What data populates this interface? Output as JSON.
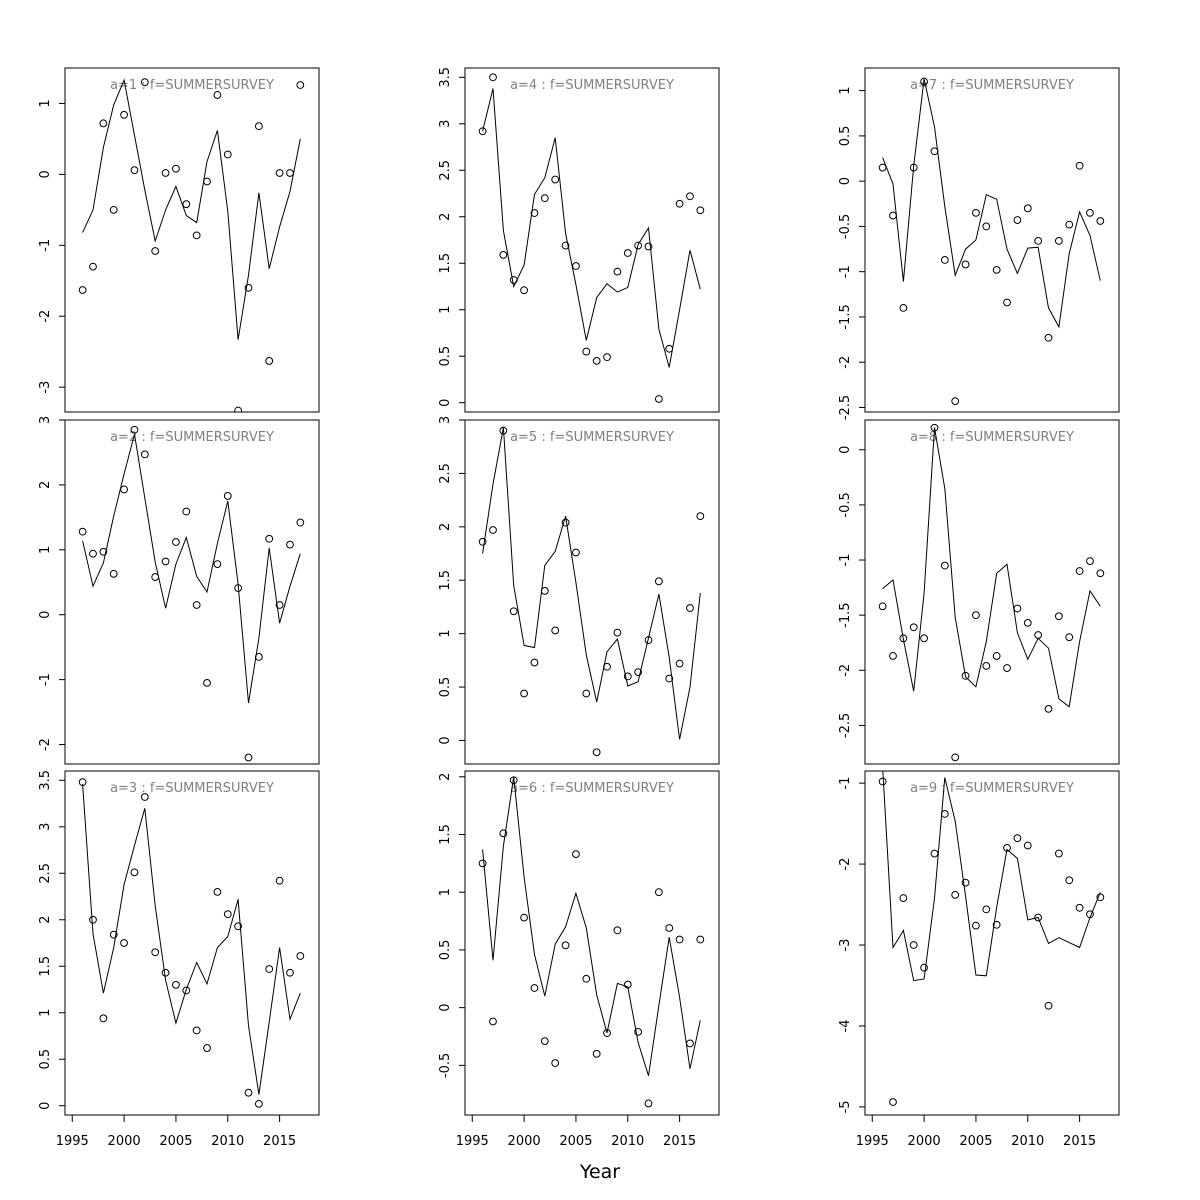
{
  "chart_data": {
    "type": "line",
    "xlabel": "Year",
    "x_ticks": [
      1995,
      2000,
      2005,
      2010,
      2015
    ],
    "years": [
      1996,
      1997,
      1998,
      1999,
      2000,
      2001,
      2002,
      2003,
      2004,
      2005,
      2006,
      2007,
      2008,
      2009,
      2010,
      2011,
      2012,
      2013,
      2014,
      2015,
      2016,
      2017
    ],
    "panels": [
      {
        "title": "a=1  :  f=SUMMERSURVEY",
        "ylim": [
          -3.35,
          1.5
        ],
        "y_ticks": [
          1,
          0,
          -1,
          -2,
          -3
        ],
        "observed": [
          -1.63,
          -1.3,
          0.72,
          -0.5,
          0.84,
          0.06,
          1.3,
          -1.08,
          0.02,
          0.08,
          -0.42,
          -0.86,
          -0.1,
          1.12,
          0.28,
          -3.33,
          -1.6,
          0.68,
          -2.63,
          0.02,
          0.02,
          1.26
        ],
        "fitted": [
          -0.82,
          -0.5,
          0.38,
          0.98,
          1.33,
          0.55,
          -0.22,
          -0.94,
          -0.5,
          -0.17,
          -0.58,
          -0.68,
          0.18,
          0.62,
          -0.52,
          -2.33,
          -1.42,
          -0.26,
          -1.33,
          -0.74,
          -0.24,
          0.5
        ]
      },
      {
        "title": "a=2  :  f=SUMMERSURVEY",
        "ylim": [
          -2.3,
          3.0
        ],
        "y_ticks": [
          3,
          2,
          1,
          0,
          -1,
          -2
        ],
        "observed": [
          1.28,
          0.94,
          0.97,
          0.63,
          1.93,
          2.85,
          2.47,
          0.58,
          0.82,
          1.12,
          1.59,
          0.15,
          -1.05,
          0.78,
          1.83,
          0.41,
          -2.2,
          -0.65,
          1.17,
          0.15,
          1.08,
          1.42
        ],
        "fitted": [
          1.14,
          0.44,
          0.8,
          1.52,
          2.17,
          2.78,
          1.8,
          0.81,
          0.1,
          0.78,
          1.19,
          0.59,
          0.35,
          1.1,
          1.75,
          0.47,
          -1.36,
          -0.36,
          1.03,
          -0.13,
          0.44,
          0.94
        ]
      },
      {
        "title": "a=3  :  f=SUMMERSURVEY",
        "ylim": [
          -0.1,
          3.6
        ],
        "y_ticks": [
          0.0,
          0.5,
          1.0,
          1.5,
          2.0,
          2.5,
          3.0,
          3.5
        ],
        "observed": [
          3.48,
          2.0,
          0.94,
          1.84,
          1.75,
          2.51,
          3.32,
          1.65,
          1.43,
          1.3,
          1.24,
          0.81,
          0.62,
          2.3,
          2.06,
          1.93,
          0.14,
          0.02,
          1.47,
          2.42,
          1.43,
          1.61
        ],
        "fitted": [
          3.46,
          1.85,
          1.21,
          1.7,
          2.38,
          2.8,
          3.2,
          2.15,
          1.35,
          0.89,
          1.25,
          1.54,
          1.31,
          1.7,
          1.82,
          2.22,
          0.86,
          0.12,
          0.9,
          1.7,
          0.93,
          1.21
        ]
      },
      {
        "title": "a=4  :  f=SUMMERSURVEY",
        "ylim": [
          -0.1,
          3.6
        ],
        "y_ticks": [
          0.0,
          0.5,
          1.0,
          1.5,
          2.0,
          2.5,
          3.0,
          3.5
        ],
        "observed": [
          2.92,
          3.5,
          1.59,
          1.32,
          1.21,
          2.04,
          2.2,
          2.4,
          1.69,
          1.47,
          0.55,
          0.45,
          0.49,
          1.41,
          1.61,
          1.69,
          1.68,
          0.04,
          0.58,
          2.14,
          2.22,
          2.07
        ],
        "fitted": [
          2.92,
          3.38,
          1.85,
          1.25,
          1.48,
          2.24,
          2.42,
          2.85,
          1.82,
          1.27,
          0.67,
          1.13,
          1.28,
          1.19,
          1.24,
          1.7,
          1.88,
          0.79,
          0.38,
          1.0,
          1.64,
          1.22
        ]
      },
      {
        "title": "a=5  :  f=SUMMERSURVEY",
        "ylim": [
          -0.22,
          3.0
        ],
        "y_ticks": [
          0.0,
          0.5,
          1.0,
          1.5,
          2.0,
          2.5,
          3.0
        ],
        "observed": [
          1.86,
          1.97,
          2.9,
          1.21,
          0.44,
          0.73,
          1.4,
          1.03,
          2.04,
          1.76,
          0.44,
          -0.11,
          0.69,
          1.01,
          0.6,
          0.64,
          0.94,
          1.49,
          0.58,
          0.72,
          1.24,
          2.1
        ],
        "fitted": [
          1.75,
          2.4,
          2.93,
          1.45,
          0.89,
          0.87,
          1.64,
          1.77,
          2.1,
          1.48,
          0.8,
          0.36,
          0.83,
          0.95,
          0.51,
          0.55,
          0.96,
          1.37,
          0.78,
          0.01,
          0.5,
          1.38
        ]
      },
      {
        "title": "a=6  :  f=SUMMERSURVEY",
        "ylim": [
          -0.93,
          2.05
        ],
        "y_ticks": [
          -0.5,
          0.0,
          0.5,
          1.0,
          1.5,
          2.0
        ],
        "observed": [
          1.25,
          -0.12,
          1.51,
          1.97,
          0.78,
          0.17,
          -0.29,
          -0.48,
          0.54,
          1.33,
          0.25,
          -0.4,
          -0.22,
          0.67,
          0.2,
          -0.21,
          -0.83,
          1.0,
          0.69,
          0.59,
          -0.31,
          0.59
        ],
        "fitted": [
          1.37,
          0.41,
          1.4,
          2.0,
          1.13,
          0.46,
          0.1,
          0.55,
          0.7,
          0.99,
          0.69,
          0.11,
          -0.22,
          0.21,
          0.18,
          -0.3,
          -0.59,
          0.02,
          0.61,
          0.09,
          -0.53,
          -0.11
        ]
      },
      {
        "title": "a=7  :  f=SUMMERSURVEY",
        "ylim": [
          -2.55,
          1.25
        ],
        "y_ticks": [
          1.0,
          0.5,
          0.0,
          -0.5,
          -1.0,
          -1.5,
          -2.0,
          -2.5
        ],
        "observed": [
          0.15,
          -0.38,
          -1.4,
          0.15,
          1.1,
          0.33,
          -0.87,
          -2.43,
          -0.92,
          -0.35,
          -0.5,
          -0.98,
          -1.34,
          -0.43,
          -0.3,
          -0.66,
          -1.73,
          -0.66,
          -0.48,
          0.17,
          -0.35,
          -0.44
        ],
        "fitted": [
          0.26,
          -0.03,
          -1.11,
          0.17,
          1.13,
          0.6,
          -0.28,
          -1.04,
          -0.75,
          -0.65,
          -0.15,
          -0.2,
          -0.75,
          -1.02,
          -0.74,
          -0.73,
          -1.4,
          -1.61,
          -0.8,
          -0.34,
          -0.6,
          -1.1
        ]
      },
      {
        "title": "a=8  :  f=SUMMERSURVEY",
        "ylim": [
          -2.85,
          0.27
        ],
        "y_ticks": [
          0.0,
          -0.5,
          -1.0,
          -1.5,
          -2.0,
          -2.5
        ],
        "observed": [
          -1.42,
          -1.87,
          -1.71,
          -1.61,
          -1.71,
          0.2,
          -1.05,
          -2.79,
          -2.05,
          -1.5,
          -1.96,
          -1.87,
          -1.98,
          -1.44,
          -1.57,
          -1.68,
          -2.35,
          -1.51,
          -1.7,
          -1.1,
          -1.01,
          -1.12
        ],
        "fitted": [
          -1.26,
          -1.18,
          -1.72,
          -2.19,
          -1.3,
          0.2,
          -0.35,
          -1.52,
          -2.06,
          -2.15,
          -1.74,
          -1.12,
          -1.04,
          -1.66,
          -1.9,
          -1.71,
          -1.8,
          -2.26,
          -2.33,
          -1.74,
          -1.28,
          -1.42
        ]
      },
      {
        "title": "a=9  :  f=SUMMERSURVEY",
        "ylim": [
          -5.1,
          -0.85
        ],
        "y_ticks": [
          -1,
          -2,
          -3,
          -4,
          -5
        ],
        "observed": [
          -0.98,
          -4.94,
          -2.42,
          -3.0,
          -3.28,
          -1.87,
          -1.38,
          -2.38,
          -2.23,
          -2.76,
          -2.56,
          -2.75,
          -1.8,
          -1.68,
          -1.77,
          -2.66,
          -3.75,
          -1.87,
          -2.2,
          -2.54,
          -2.62,
          -2.41
        ],
        "fitted": [
          -0.8,
          -3.03,
          -2.82,
          -3.44,
          -3.42,
          -2.42,
          -0.93,
          -1.47,
          -2.4,
          -3.37,
          -3.38,
          -2.53,
          -1.82,
          -1.93,
          -2.69,
          -2.66,
          -2.98,
          -2.91,
          -2.97,
          -3.03,
          -2.66,
          -2.35
        ]
      }
    ]
  }
}
